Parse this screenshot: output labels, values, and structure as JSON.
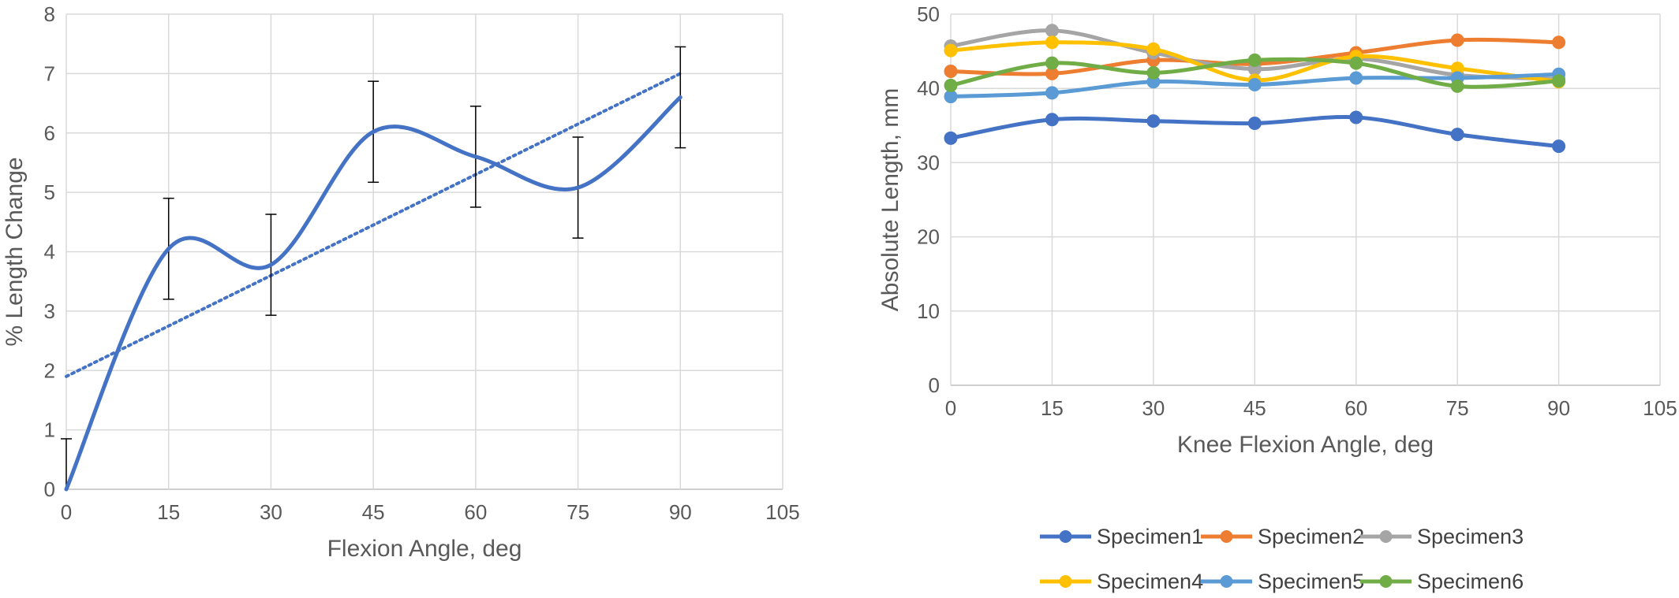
{
  "chart_data": [
    {
      "type": "line",
      "xlabel": "Flexion Angle, deg",
      "ylabel": "% Length Change",
      "xlim": [
        0,
        105
      ],
      "ylim": [
        0,
        8
      ],
      "xticks": [
        0,
        15,
        30,
        45,
        60,
        75,
        90,
        105
      ],
      "yticks": [
        0,
        1,
        2,
        3,
        4,
        5,
        6,
        7,
        8
      ],
      "grid": "vertical and horizontal",
      "smooth": true,
      "series": [
        {
          "x": [
            0,
            15,
            30,
            45,
            60,
            75,
            90
          ],
          "values": [
            0,
            4.05,
            3.78,
            6.02,
            5.6,
            5.08,
            6.6
          ],
          "error": [
            0.85,
            0.85,
            0.85,
            0.85,
            0.85,
            0.85,
            0.85
          ],
          "color": "#4472C4"
        }
      ],
      "trendline": {
        "type": "linear",
        "style": "dotted",
        "color": "#4472C4",
        "x": [
          0,
          90
        ],
        "values": [
          1.9,
          7.0
        ]
      }
    },
    {
      "type": "line",
      "xlabel": "Knee Flexion Angle, deg",
      "ylabel": "Absolute Length, mm",
      "xlim": [
        0,
        105
      ],
      "ylim": [
        0,
        50
      ],
      "xticks": [
        0,
        15,
        30,
        45,
        60,
        75,
        90,
        105
      ],
      "yticks": [
        0,
        10,
        20,
        30,
        40,
        50
      ],
      "grid": "vertical and horizontal",
      "smooth": true,
      "legend": "bottom",
      "x": [
        0,
        15,
        30,
        45,
        60,
        75,
        90
      ],
      "series": [
        {
          "name": "Specimen1",
          "color": "#4472C4",
          "values": [
            33.3,
            35.8,
            35.6,
            35.3,
            36.1,
            33.8,
            32.2
          ]
        },
        {
          "name": "Specimen2",
          "color": "#ED7D31",
          "values": [
            42.3,
            42.0,
            43.8,
            43.3,
            44.8,
            46.5,
            46.2
          ]
        },
        {
          "name": "Specimen3",
          "color": "#A5A5A5",
          "values": [
            45.7,
            47.8,
            44.8,
            42.6,
            44.0,
            41.8,
            41.3
          ]
        },
        {
          "name": "Specimen4",
          "color": "#FFC000",
          "values": [
            45.1,
            46.2,
            45.3,
            41.1,
            44.3,
            42.7,
            40.9
          ]
        },
        {
          "name": "Specimen5",
          "color": "#5B9BD5",
          "values": [
            38.9,
            39.4,
            40.9,
            40.5,
            41.4,
            41.4,
            41.9
          ]
        },
        {
          "name": "Specimen6",
          "color": "#70AD47",
          "values": [
            40.4,
            43.4,
            42.1,
            43.8,
            43.4,
            40.3,
            41.0
          ]
        }
      ]
    }
  ]
}
